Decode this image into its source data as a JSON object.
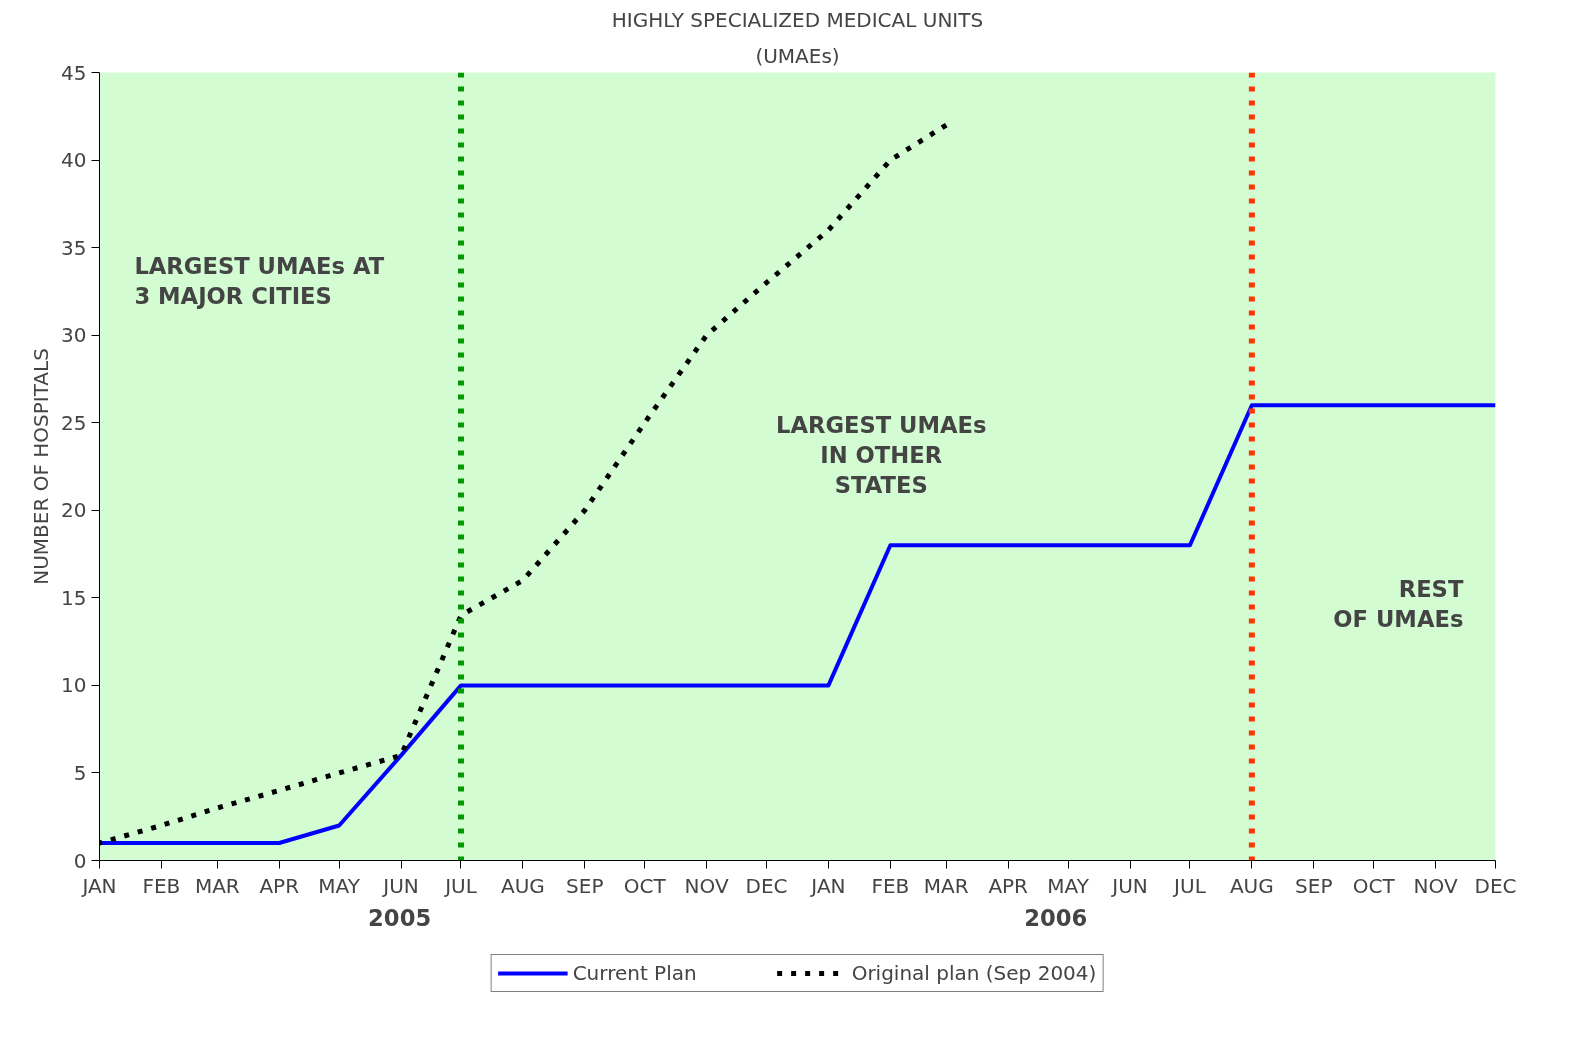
{
  "chart_data": {
    "type": "line",
    "title": "HIGHLY SPECIALIZED MEDICAL UNITS",
    "subtitle": "(UMAEs)",
    "ylabel": "NUMBER OF HOSPITALS",
    "x": [
      "2005-01",
      "2005-02",
      "2005-03",
      "2005-04",
      "2005-05",
      "2005-06",
      "2005-07",
      "2005-08",
      "2005-09",
      "2005-10",
      "2005-11",
      "2005-12",
      "2006-01",
      "2006-02",
      "2006-03",
      "2006-04",
      "2006-05",
      "2006-06",
      "2006-07",
      "2006-08",
      "2006-09",
      "2006-10",
      "2006-11",
      "2006-12"
    ],
    "xlim": [
      "2005-01",
      "2006-12"
    ],
    "xticks": [
      {
        "value": "2005-01",
        "label": "JAN"
      },
      {
        "value": "2005-02",
        "label": "FEB"
      },
      {
        "value": "2005-03",
        "label": "MAR"
      },
      {
        "value": "2005-04",
        "label": "APR"
      },
      {
        "value": "2005-05",
        "label": "MAY"
      },
      {
        "value": "2005-06",
        "label": "JUN"
      },
      {
        "value": "2005-07",
        "label": "JUL"
      },
      {
        "value": "2005-08",
        "label": "AUG"
      },
      {
        "value": "2005-09",
        "label": "SEP"
      },
      {
        "value": "2005-10",
        "label": "OCT"
      },
      {
        "value": "2005-11",
        "label": "NOV"
      },
      {
        "value": "2005-12",
        "label": "DEC"
      },
      {
        "value": "2006-01",
        "label": "JAN"
      },
      {
        "value": "2006-02",
        "label": "FEB"
      },
      {
        "value": "2006-03",
        "label": "MAR"
      },
      {
        "value": "2006-04",
        "label": "APR"
      },
      {
        "value": "2006-05",
        "label": "MAY"
      },
      {
        "value": "2006-06",
        "label": "JUN"
      },
      {
        "value": "2006-07",
        "label": "JUL"
      },
      {
        "value": "2006-08",
        "label": "AUG"
      },
      {
        "value": "2006-09",
        "label": "SEP"
      },
      {
        "value": "2006-10",
        "label": "OCT"
      },
      {
        "value": "2006-11",
        "label": "NOV"
      },
      {
        "value": "2006-12",
        "label": "DEC"
      }
    ],
    "series": [
      {
        "name": "Current Plan",
        "color": "#0000ff",
        "line_style": "solid",
        "values": [
          1,
          1,
          1,
          1,
          2,
          6,
          10,
          10,
          10,
          10,
          10,
          10,
          10,
          18,
          18,
          18,
          18,
          18,
          18,
          26,
          26,
          26,
          26,
          26
        ]
      },
      {
        "name": "Original plan (Sep 2004)",
        "color": "#000000",
        "line_style": "dotted",
        "values": [
          1,
          2,
          3,
          4,
          5,
          6,
          14,
          16,
          20,
          25,
          30,
          33,
          36,
          40,
          42,
          null,
          null,
          null,
          null,
          null,
          null,
          null,
          null,
          null
        ]
      }
    ],
    "ylim": [
      0,
      45
    ],
    "yticks": [
      0,
      5,
      10,
      15,
      20,
      25,
      30,
      35,
      40,
      45
    ],
    "grid": false,
    "legend": "bottom",
    "marker": "none",
    "ref_lines": [
      {
        "axis": "x",
        "value": "2005-07",
        "color": "#009900",
        "line_style": "dotted"
      },
      {
        "axis": "x",
        "value": "2006-08",
        "color": "#ff3300",
        "line_style": "dotted"
      }
    ],
    "annotations": [
      "LARGEST UMAEs AT\n3 MAJOR CITIES",
      "LARGEST UMAEs\nIN OTHER\nSTATES",
      "REST\nOF UMAEs",
      "2005",
      "2006"
    ]
  }
}
